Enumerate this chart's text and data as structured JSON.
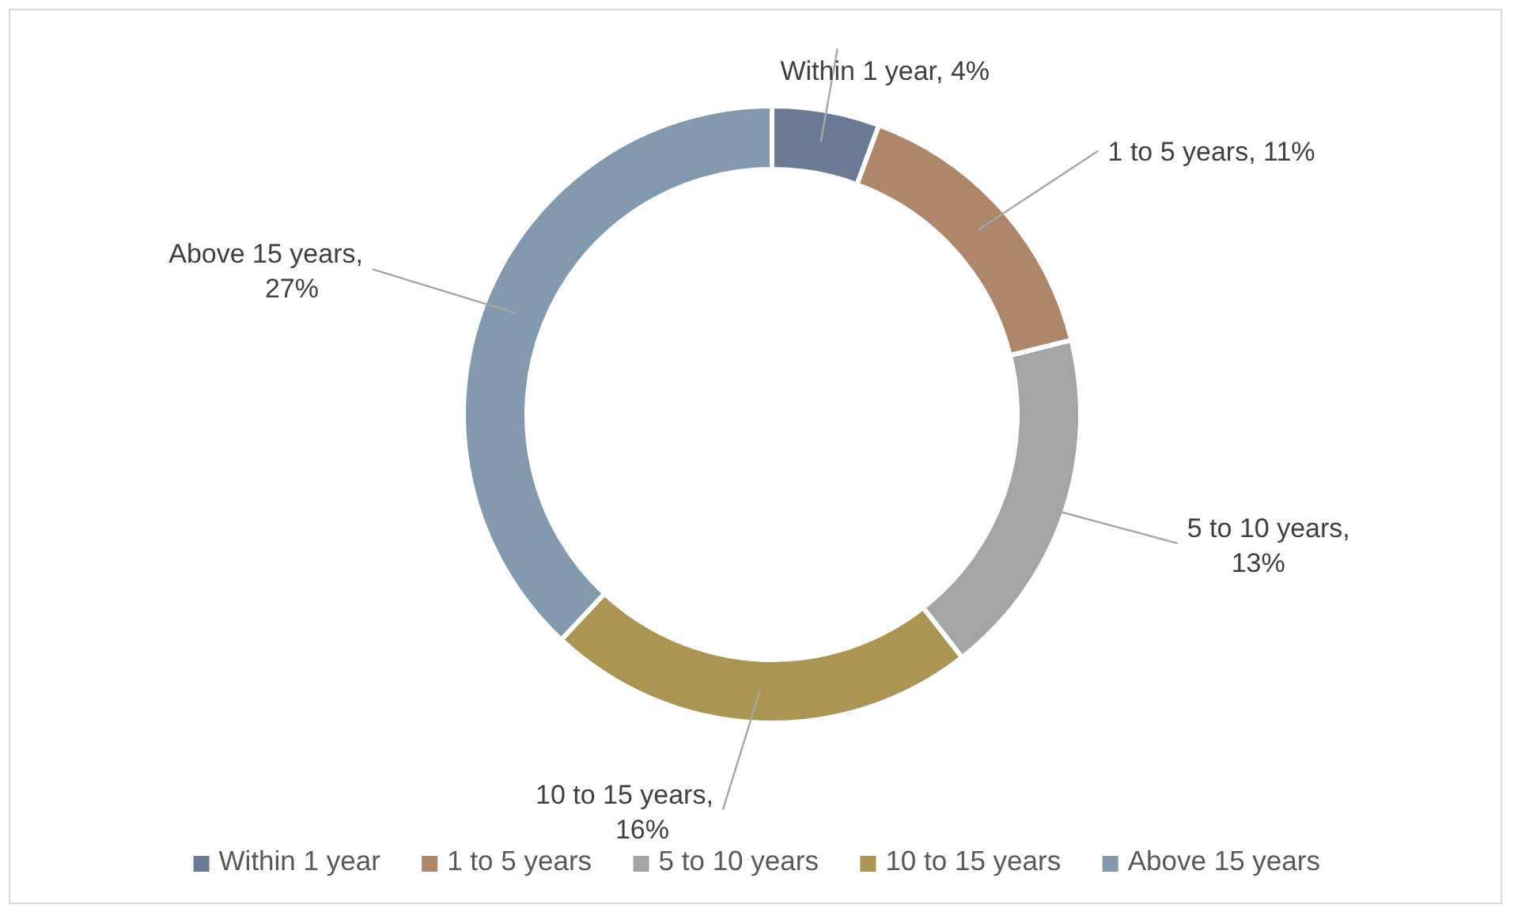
{
  "chart_data": {
    "type": "donut",
    "categories": [
      "Within 1 year",
      "1 to 5 years",
      "5 to 10 years",
      "10 to 15 years",
      "Above 15 years"
    ],
    "values": [
      4,
      11,
      13,
      16,
      27
    ],
    "value_labels": [
      "Within 1 year, 4%",
      "1 to 5 years, 11%",
      "5 to 10 years, 13%",
      "10 to 15 years, 16%",
      "Above 15 years, 27%"
    ],
    "colors": [
      "#6b7b96",
      "#ae8669",
      "#a5a5a5",
      "#aa9552",
      "#8399ad"
    ],
    "legend": "bottom"
  }
}
